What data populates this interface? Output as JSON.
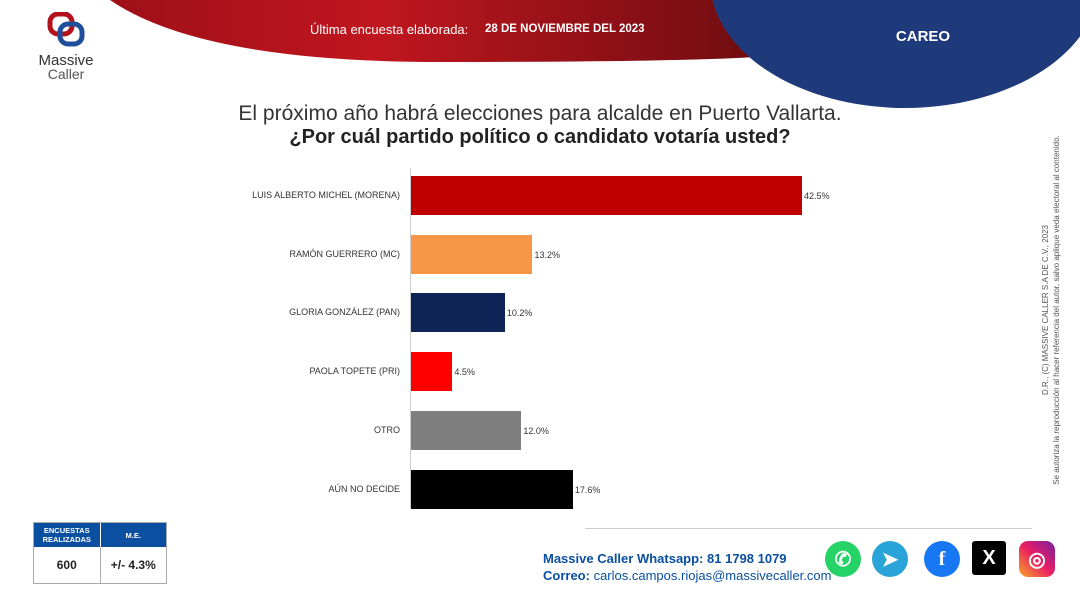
{
  "header": {
    "survey_label": "Última encuesta elaborada:",
    "survey_date": "28 DE NOVIEMBRE DEL 2023",
    "section": "CAREO",
    "brand_line1": "Massive",
    "brand_line2": "Caller"
  },
  "colors": {
    "header_red": "#b3121c",
    "header_blue": "#1f3a7a",
    "table_header": "#0b4fa0"
  },
  "chart_data": {
    "type": "bar",
    "orientation": "horizontal",
    "title": "El próximo año habrá elecciones para alcalde en Puerto Vallarta.",
    "subtitle": "¿Por cuál partido político o candidato votaría usted?",
    "categories": [
      "LUIS ALBERTO MICHEL (MORENA)",
      "RAMÓN GUERRERO (MC)",
      "GLORIA GONZÁLEZ (PAN)",
      "PAOLA TOPETE (PRI)",
      "OTRO",
      "AÚN NO DECIDE"
    ],
    "values": [
      42.5,
      13.2,
      10.2,
      4.5,
      12.0,
      17.6
    ],
    "labels": [
      "42.5%",
      "13.2%",
      "10.2%",
      "4.5%",
      "12.0%",
      "17.6%"
    ],
    "colors": [
      "#c00000",
      "#f79646",
      "#0f2557",
      "#ff0000",
      "#7f7f7f",
      "#000000"
    ],
    "grid": false
  },
  "side_note": {
    "line1": "D.R., (C) MASSIVE CALLER S.A DE C.V., 2023",
    "line2": "Se autoriza la reproducción al hacer referencia del autor, salvo aplique veda electoral al contenido."
  },
  "stats": {
    "h1": "ENCUESTAS REALIZADAS",
    "h2": "M.E.",
    "v1": "600",
    "v2": "+/- 4.3%"
  },
  "contact": {
    "whatsapp_label": "Massive Caller Whatsapp:",
    "whatsapp": "81 1798 1079",
    "email_label": "Correo:",
    "email": "carlos.campos.riojas@massivecaller.com"
  },
  "social": [
    "whatsapp-icon",
    "telegram-icon",
    "facebook-icon",
    "x-icon",
    "instagram-icon"
  ]
}
